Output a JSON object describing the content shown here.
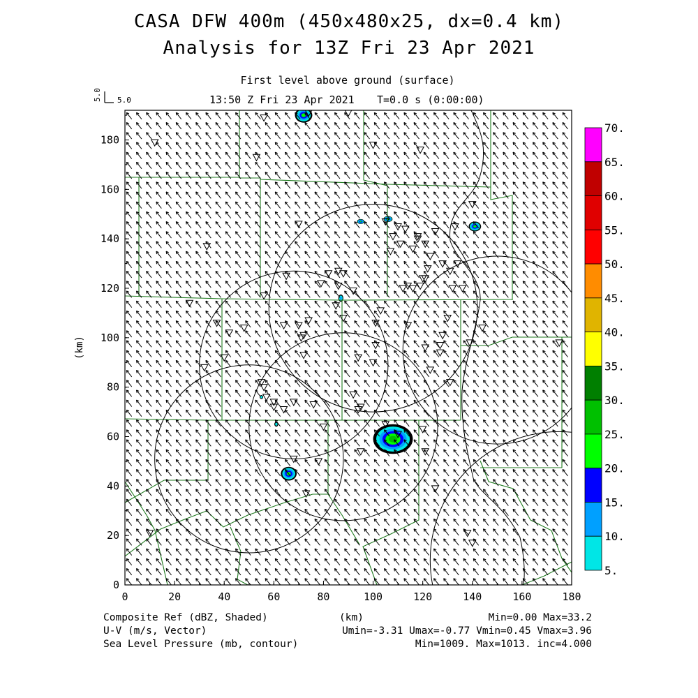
{
  "header": {
    "title_line1": "CASA DFW 400m (450x480x25, dx=0.4 km)",
    "title_line2": "Analysis for 13Z Fri 23 Apr 2021",
    "level": "First level above ground (surface)",
    "time": "13:50 Z Fri 23 Apr 2021",
    "elapsed": "T=0.0 s (0:00:00)"
  },
  "vector_key": {
    "label": "5.0",
    "vertical_label": "5.0"
  },
  "footer": {
    "line1_left": "Composite Ref (dBZ, Shaded)",
    "line1_mid": "(km)",
    "line1_right": "Min=0.00 Max=33.2",
    "line2_left": "U-V (m/s, Vector)",
    "line2_right": "Umin=-3.31 Umax=-0.77 Vmin=0.45 Vmax=3.96",
    "line3_left": "Sea Level Pressure (mb, contour)",
    "line3_right": "Min=1009. Max=1013. inc=4.000"
  },
  "colors": {
    "county_lines": "#1f7a1f",
    "frame": "#000000",
    "vectors": "#000000"
  },
  "chart_data": {
    "type": "heatmap",
    "xlabel": "",
    "ylabel": "(km)",
    "xlim": [
      0,
      180
    ],
    "ylim": [
      0,
      192
    ],
    "x_ticks": [
      0,
      20,
      40,
      60,
      80,
      100,
      120,
      140,
      160,
      180
    ],
    "y_ticks": [
      0,
      20,
      40,
      60,
      80,
      100,
      120,
      140,
      160,
      180
    ],
    "colorbar": {
      "levels": [
        "70.",
        "65.",
        "60.",
        "55.",
        "50.",
        "45.",
        "40.",
        "35.",
        "30.",
        "25.",
        "20.",
        "15.",
        "10.",
        "5."
      ],
      "colors": [
        "#ff00ff",
        "#c00000",
        "#e00000",
        "#ff0000",
        "#ff8c00",
        "#e0b400",
        "#ffff00",
        "#007f00",
        "#00c000",
        "#00ff00",
        "#0000ff",
        "#00a0ff",
        "#00e6e6"
      ]
    },
    "wind": {
      "u": -1.9,
      "v": 2.4
    },
    "radar_rings": [
      {
        "cx": 100,
        "cy": 112,
        "r": 42
      },
      {
        "cx": 68,
        "cy": 89,
        "r": 38
      },
      {
        "cx": 88,
        "cy": 64,
        "r": 38
      },
      {
        "cx": 50,
        "cy": 51,
        "r": 38
      },
      {
        "cx": 150,
        "cy": 95,
        "r": 38
      },
      {
        "cx": 175,
        "cy": 10,
        "r": 52
      }
    ],
    "echoes": [
      {
        "x": 108,
        "y": 59,
        "rx": 8,
        "ry": 6,
        "max_level": 30
      },
      {
        "x": 66,
        "y": 45,
        "rx": 3.2,
        "ry": 2.8,
        "max_level": 25
      },
      {
        "x": 141,
        "y": 145,
        "rx": 2.5,
        "ry": 2,
        "max_level": 25
      },
      {
        "x": 95,
        "y": 147,
        "rx": 1.5,
        "ry": 1,
        "max_level": 25
      },
      {
        "x": 106,
        "y": 148,
        "rx": 1.8,
        "ry": 1.2,
        "max_level": 30
      },
      {
        "x": 72,
        "y": 190,
        "rx": 3.5,
        "ry": 3,
        "max_level": 25
      },
      {
        "x": 87,
        "y": 116,
        "rx": 1,
        "ry": 1.5,
        "max_level": 15
      },
      {
        "x": 61,
        "y": 65,
        "rx": 0.8,
        "ry": 1,
        "max_level": 10
      },
      {
        "x": 55,
        "y": 76,
        "rx": 0.7,
        "ry": 0.8,
        "max_level": 10
      }
    ],
    "stations": [
      [
        56,
        189
      ],
      [
        90,
        191
      ],
      [
        12,
        179
      ],
      [
        53,
        173
      ],
      [
        74,
        191
      ],
      [
        100,
        178
      ],
      [
        119,
        176
      ],
      [
        140,
        154
      ],
      [
        70,
        146
      ],
      [
        33,
        137
      ],
      [
        128,
        130
      ],
      [
        108,
        141
      ],
      [
        105,
        147
      ],
      [
        110,
        145
      ],
      [
        111,
        138
      ],
      [
        107,
        135
      ],
      [
        113,
        144
      ],
      [
        118,
        140
      ],
      [
        125,
        143
      ],
      [
        120,
        124
      ],
      [
        122,
        128
      ],
      [
        123,
        133
      ],
      [
        116,
        136
      ],
      [
        121,
        138
      ],
      [
        118,
        141
      ],
      [
        133,
        145
      ],
      [
        134,
        130
      ],
      [
        132,
        120
      ],
      [
        136,
        120
      ],
      [
        112,
        120
      ],
      [
        114,
        121
      ],
      [
        116,
        120
      ],
      [
        119,
        121
      ],
      [
        121,
        124
      ],
      [
        131,
        127
      ],
      [
        65,
        125
      ],
      [
        82,
        126
      ],
      [
        86,
        127
      ],
      [
        88,
        126
      ],
      [
        85,
        113
      ],
      [
        88,
        108
      ],
      [
        86,
        121
      ],
      [
        79,
        122
      ],
      [
        92,
        119
      ],
      [
        74,
        107
      ],
      [
        70,
        105
      ],
      [
        71,
        100
      ],
      [
        72,
        101
      ],
      [
        72,
        93
      ],
      [
        64,
        105
      ],
      [
        56,
        117
      ],
      [
        48,
        104
      ],
      [
        37,
        106
      ],
      [
        26,
        114
      ],
      [
        32,
        88
      ],
      [
        40,
        92
      ],
      [
        55,
        82
      ],
      [
        57,
        76
      ],
      [
        60,
        72
      ],
      [
        60,
        74
      ],
      [
        56,
        80
      ],
      [
        64,
        71
      ],
      [
        68,
        74
      ],
      [
        76,
        73
      ],
      [
        80,
        64
      ],
      [
        94,
        71
      ],
      [
        94,
        92
      ],
      [
        100,
        90
      ],
      [
        101,
        97
      ],
      [
        101,
        106
      ],
      [
        103,
        111
      ],
      [
        114,
        105
      ],
      [
        121,
        96
      ],
      [
        127,
        94
      ],
      [
        127,
        97
      ],
      [
        130,
        108
      ],
      [
        128,
        101
      ],
      [
        123,
        87
      ],
      [
        131,
        82
      ],
      [
        139,
        98
      ],
      [
        144,
        104
      ],
      [
        92,
        77
      ],
      [
        95,
        72
      ],
      [
        105,
        65
      ],
      [
        110,
        61
      ],
      [
        120,
        63
      ],
      [
        121,
        54
      ],
      [
        95,
        54
      ],
      [
        78,
        50
      ],
      [
        68,
        51
      ],
      [
        73,
        37
      ],
      [
        125,
        39
      ],
      [
        138,
        21
      ],
      [
        140,
        17
      ],
      [
        175,
        98
      ],
      [
        10,
        21
      ],
      [
        42,
        102
      ]
    ]
  }
}
